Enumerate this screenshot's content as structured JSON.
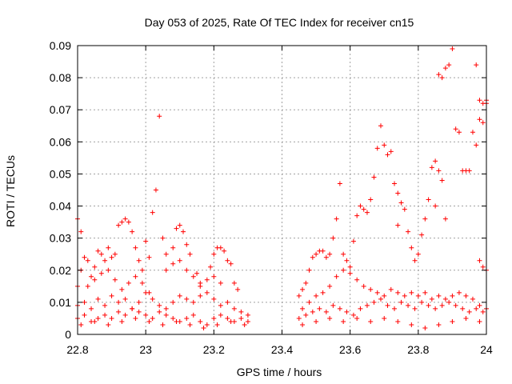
{
  "chart_data": {
    "type": "scatter",
    "title": "Day 053 of 2025, Rate Of TEC Index for receiver cn15",
    "xlabel": "GPS time / hours",
    "ylabel": "ROTI / TECUs",
    "xlim": [
      22.8,
      24.0
    ],
    "ylim": [
      0,
      0.09
    ],
    "xticks": [
      22.8,
      23.0,
      23.2,
      23.4,
      23.6,
      23.8,
      24.0
    ],
    "xtick_labels": [
      "22.8",
      "23",
      "23.2",
      "23.4",
      "23.6",
      "23.8",
      "24"
    ],
    "yticks": [
      0,
      0.01,
      0.02,
      0.03,
      0.04,
      0.05,
      0.06,
      0.07,
      0.08,
      0.09
    ],
    "ytick_labels": [
      "0",
      "0.01",
      "0.02",
      "0.03",
      "0.04",
      "0.05",
      "0.06",
      "0.07",
      "0.08",
      "0.09"
    ],
    "grid": true,
    "marker": "+",
    "marker_color": "#ff0000",
    "series": [
      {
        "name": "ROTI",
        "points": [
          [
            22.8,
            0.036
          ],
          [
            22.81,
            0.032
          ],
          [
            22.81,
            0.02
          ],
          [
            22.8,
            0.015
          ],
          [
            22.82,
            0.024
          ],
          [
            22.83,
            0.023
          ],
          [
            22.84,
            0.018
          ],
          [
            22.85,
            0.021
          ],
          [
            22.86,
            0.026
          ],
          [
            22.87,
            0.025
          ],
          [
            22.88,
            0.023
          ],
          [
            22.89,
            0.027
          ],
          [
            22.9,
            0.024
          ],
          [
            22.91,
            0.025
          ],
          [
            22.92,
            0.034
          ],
          [
            22.93,
            0.035
          ],
          [
            22.94,
            0.036
          ],
          [
            22.95,
            0.035
          ],
          [
            22.96,
            0.032
          ],
          [
            22.97,
            0.027
          ],
          [
            22.98,
            0.023
          ],
          [
            22.99,
            0.02
          ],
          [
            23.0,
            0.029
          ],
          [
            23.01,
            0.024
          ],
          [
            23.02,
            0.038
          ],
          [
            23.03,
            0.045
          ],
          [
            23.04,
            0.068
          ],
          [
            23.05,
            0.03
          ],
          [
            23.06,
            0.025
          ],
          [
            23.08,
            0.027
          ],
          [
            23.09,
            0.033
          ],
          [
            23.1,
            0.034
          ],
          [
            23.11,
            0.032
          ],
          [
            23.12,
            0.028
          ],
          [
            23.13,
            0.025
          ],
          [
            23.15,
            0.019
          ],
          [
            23.16,
            0.016
          ],
          [
            23.18,
            0.017
          ],
          [
            23.19,
            0.021
          ],
          [
            23.2,
            0.025
          ],
          [
            23.21,
            0.027
          ],
          [
            23.22,
            0.027
          ],
          [
            23.23,
            0.026
          ],
          [
            23.24,
            0.023
          ],
          [
            23.25,
            0.022
          ],
          [
            23.26,
            0.016
          ],
          [
            23.27,
            0.014
          ],
          [
            22.83,
            0.015
          ],
          [
            22.85,
            0.017
          ],
          [
            22.87,
            0.019
          ],
          [
            22.89,
            0.02
          ],
          [
            22.91,
            0.017
          ],
          [
            22.93,
            0.014
          ],
          [
            22.95,
            0.016
          ],
          [
            22.97,
            0.018
          ],
          [
            22.99,
            0.016
          ],
          [
            23.01,
            0.013
          ],
          [
            23.06,
            0.02
          ],
          [
            23.08,
            0.022
          ],
          [
            23.1,
            0.023
          ],
          [
            23.12,
            0.02
          ],
          [
            23.14,
            0.018
          ],
          [
            23.16,
            0.015
          ],
          [
            23.2,
            0.018
          ],
          [
            23.22,
            0.016
          ],
          [
            22.8,
            0.009
          ],
          [
            22.82,
            0.01
          ],
          [
            22.84,
            0.008
          ],
          [
            22.86,
            0.011
          ],
          [
            22.88,
            0.009
          ],
          [
            22.9,
            0.012
          ],
          [
            22.92,
            0.01
          ],
          [
            22.94,
            0.011
          ],
          [
            22.96,
            0.008
          ],
          [
            22.98,
            0.01
          ],
          [
            23.0,
            0.013
          ],
          [
            23.02,
            0.011
          ],
          [
            23.04,
            0.009
          ],
          [
            23.06,
            0.008
          ],
          [
            23.08,
            0.01
          ],
          [
            23.1,
            0.012
          ],
          [
            23.12,
            0.011
          ],
          [
            23.14,
            0.01
          ],
          [
            23.16,
            0.012
          ],
          [
            23.18,
            0.013
          ],
          [
            23.2,
            0.011
          ],
          [
            23.22,
            0.009
          ],
          [
            23.24,
            0.01
          ],
          [
            23.26,
            0.008
          ],
          [
            23.28,
            0.007
          ],
          [
            23.3,
            0.006
          ],
          [
            22.8,
            0.005
          ],
          [
            22.82,
            0.006
          ],
          [
            22.84,
            0.004
          ],
          [
            22.86,
            0.005
          ],
          [
            22.88,
            0.006
          ],
          [
            22.9,
            0.005
          ],
          [
            22.92,
            0.007
          ],
          [
            22.94,
            0.006
          ],
          [
            22.96,
            0.008
          ],
          [
            22.98,
            0.007
          ],
          [
            23.0,
            0.006
          ],
          [
            23.02,
            0.005
          ],
          [
            23.04,
            0.007
          ],
          [
            23.06,
            0.006
          ],
          [
            23.08,
            0.005
          ],
          [
            23.1,
            0.004
          ],
          [
            23.12,
            0.005
          ],
          [
            23.14,
            0.006
          ],
          [
            23.16,
            0.004
          ],
          [
            23.18,
            0.003
          ],
          [
            23.2,
            0.005
          ],
          [
            23.22,
            0.006
          ],
          [
            23.24,
            0.005
          ],
          [
            23.26,
            0.004
          ],
          [
            23.28,
            0.005
          ],
          [
            23.3,
            0.004
          ],
          [
            22.81,
            0.003
          ],
          [
            22.85,
            0.004
          ],
          [
            22.89,
            0.003
          ],
          [
            22.93,
            0.004
          ],
          [
            22.97,
            0.005
          ],
          [
            23.01,
            0.004
          ],
          [
            23.05,
            0.003
          ],
          [
            23.09,
            0.004
          ],
          [
            23.13,
            0.003
          ],
          [
            23.17,
            0.002
          ],
          [
            23.21,
            0.003
          ],
          [
            23.25,
            0.004
          ],
          [
            23.29,
            0.003
          ],
          [
            23.45,
            0.012
          ],
          [
            23.46,
            0.014
          ],
          [
            23.47,
            0.016
          ],
          [
            23.48,
            0.02
          ],
          [
            23.49,
            0.024
          ],
          [
            23.5,
            0.025
          ],
          [
            23.51,
            0.026
          ],
          [
            23.52,
            0.026
          ],
          [
            23.53,
            0.024
          ],
          [
            23.54,
            0.025
          ],
          [
            23.55,
            0.03
          ],
          [
            23.56,
            0.036
          ],
          [
            23.57,
            0.047
          ],
          [
            23.58,
            0.025
          ],
          [
            23.59,
            0.023
          ],
          [
            23.6,
            0.021
          ],
          [
            23.61,
            0.029
          ],
          [
            23.62,
            0.037
          ],
          [
            23.63,
            0.04
          ],
          [
            23.64,
            0.039
          ],
          [
            23.65,
            0.038
          ],
          [
            23.66,
            0.042
          ],
          [
            23.67,
            0.049
          ],
          [
            23.68,
            0.058
          ],
          [
            23.69,
            0.065
          ],
          [
            23.7,
            0.059
          ],
          [
            23.71,
            0.056
          ],
          [
            23.72,
            0.057
          ],
          [
            23.73,
            0.047
          ],
          [
            23.74,
            0.044
          ],
          [
            23.75,
            0.041
          ],
          [
            23.76,
            0.039
          ],
          [
            23.74,
            0.034
          ],
          [
            23.77,
            0.032
          ],
          [
            23.78,
            0.027
          ],
          [
            23.79,
            0.023
          ],
          [
            23.8,
            0.025
          ],
          [
            23.81,
            0.031
          ],
          [
            23.82,
            0.036
          ],
          [
            23.83,
            0.042
          ],
          [
            23.84,
            0.052
          ],
          [
            23.85,
            0.054
          ],
          [
            23.86,
            0.051
          ],
          [
            23.86,
            0.081
          ],
          [
            23.87,
            0.08
          ],
          [
            23.88,
            0.083
          ],
          [
            23.89,
            0.084
          ],
          [
            23.9,
            0.089
          ],
          [
            23.91,
            0.064
          ],
          [
            23.92,
            0.063
          ],
          [
            23.93,
            0.051
          ],
          [
            23.94,
            0.051
          ],
          [
            23.95,
            0.051
          ],
          [
            23.96,
            0.063
          ],
          [
            23.97,
            0.059
          ],
          [
            23.98,
            0.067
          ],
          [
            23.99,
            0.066
          ],
          [
            23.97,
            0.084
          ],
          [
            23.98,
            0.073
          ],
          [
            23.99,
            0.072
          ],
          [
            24.0,
            0.073
          ],
          [
            24.0,
            0.072
          ],
          [
            23.99,
            0.021
          ],
          [
            23.98,
            0.023
          ],
          [
            24.0,
            0.02
          ],
          [
            23.87,
            0.048
          ],
          [
            23.88,
            0.036
          ],
          [
            23.85,
            0.04
          ],
          [
            23.46,
            0.008
          ],
          [
            23.48,
            0.01
          ],
          [
            23.5,
            0.012
          ],
          [
            23.52,
            0.013
          ],
          [
            23.54,
            0.015
          ],
          [
            23.56,
            0.018
          ],
          [
            23.58,
            0.02
          ],
          [
            23.6,
            0.019
          ],
          [
            23.62,
            0.017
          ],
          [
            23.64,
            0.015
          ],
          [
            23.66,
            0.014
          ],
          [
            23.68,
            0.013
          ],
          [
            23.7,
            0.012
          ],
          [
            23.72,
            0.014
          ],
          [
            23.74,
            0.013
          ],
          [
            23.76,
            0.012
          ],
          [
            23.78,
            0.013
          ],
          [
            23.8,
            0.012
          ],
          [
            23.82,
            0.013
          ],
          [
            23.84,
            0.011
          ],
          [
            23.86,
            0.012
          ],
          [
            23.88,
            0.011
          ],
          [
            23.9,
            0.012
          ],
          [
            23.92,
            0.013
          ],
          [
            23.94,
            0.012
          ],
          [
            23.96,
            0.011
          ],
          [
            23.98,
            0.009
          ],
          [
            24.0,
            0.008
          ],
          [
            23.45,
            0.005
          ],
          [
            23.47,
            0.006
          ],
          [
            23.49,
            0.007
          ],
          [
            23.51,
            0.008
          ],
          [
            23.53,
            0.007
          ],
          [
            23.55,
            0.009
          ],
          [
            23.57,
            0.008
          ],
          [
            23.59,
            0.007
          ],
          [
            23.61,
            0.006
          ],
          [
            23.63,
            0.008
          ],
          [
            23.65,
            0.009
          ],
          [
            23.67,
            0.01
          ],
          [
            23.69,
            0.011
          ],
          [
            23.71,
            0.009
          ],
          [
            23.73,
            0.008
          ],
          [
            23.75,
            0.01
          ],
          [
            23.77,
            0.009
          ],
          [
            23.79,
            0.008
          ],
          [
            23.81,
            0.01
          ],
          [
            23.83,
            0.009
          ],
          [
            23.85,
            0.008
          ],
          [
            23.87,
            0.009
          ],
          [
            23.89,
            0.01
          ],
          [
            23.91,
            0.009
          ],
          [
            23.93,
            0.008
          ],
          [
            23.95,
            0.007
          ],
          [
            23.97,
            0.008
          ],
          [
            23.99,
            0.007
          ],
          [
            23.46,
            0.003
          ],
          [
            23.5,
            0.004
          ],
          [
            23.54,
            0.005
          ],
          [
            23.58,
            0.004
          ],
          [
            23.62,
            0.005
          ],
          [
            23.66,
            0.004
          ],
          [
            23.7,
            0.005
          ],
          [
            23.74,
            0.004
          ],
          [
            23.78,
            0.003
          ],
          [
            23.82,
            0.002
          ],
          [
            23.86,
            0.003
          ],
          [
            23.9,
            0.004
          ],
          [
            23.94,
            0.005
          ],
          [
            23.98,
            0.004
          ]
        ]
      }
    ]
  }
}
